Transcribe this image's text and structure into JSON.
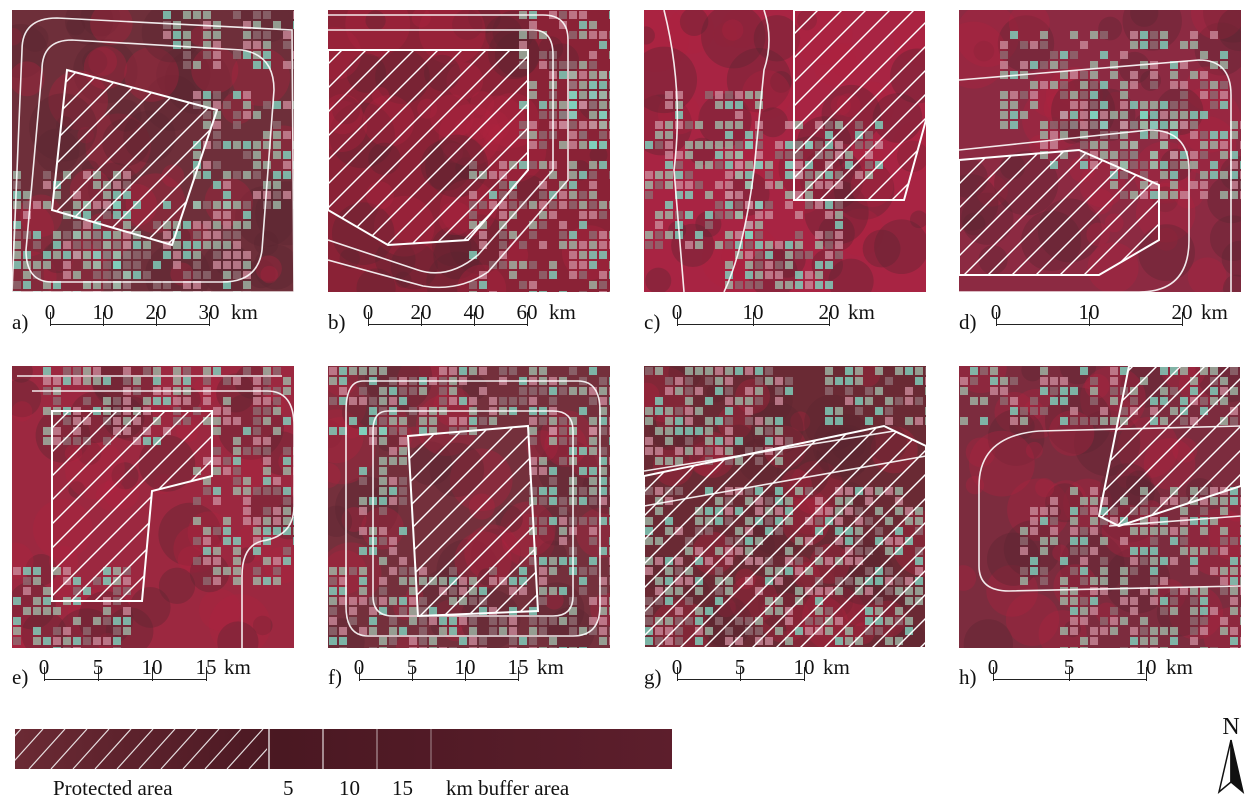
{
  "panels": [
    {
      "id": "a",
      "caption": "a)",
      "ticks": [
        "0",
        "10",
        "20",
        "30"
      ],
      "unit": "km"
    },
    {
      "id": "b",
      "caption": "b)",
      "ticks": [
        "0",
        "20",
        "40",
        "60"
      ],
      "unit": "km"
    },
    {
      "id": "c",
      "caption": "c)",
      "ticks": [
        "0",
        "10",
        "20"
      ],
      "unit": "km"
    },
    {
      "id": "d",
      "caption": "d)",
      "ticks": [
        "0",
        "10",
        "20"
      ],
      "unit": "km"
    },
    {
      "id": "e",
      "caption": "e)",
      "ticks": [
        "0",
        "5",
        "10",
        "15"
      ],
      "unit": "km"
    },
    {
      "id": "f",
      "caption": "f)",
      "ticks": [
        "0",
        "5",
        "10",
        "15"
      ],
      "unit": "km"
    },
    {
      "id": "g",
      "caption": "g)",
      "ticks": [
        "0",
        "5",
        "10"
      ],
      "unit": "km"
    },
    {
      "id": "h",
      "caption": "h)",
      "ticks": [
        "0",
        "5",
        "10"
      ],
      "unit": "km"
    }
  ],
  "legend": {
    "protected_label": "Protected area",
    "buffer_values": [
      "5",
      "10",
      "15"
    ],
    "buffer_label": "km buffer area"
  },
  "north_arrow": {
    "label": "N"
  },
  "colors": {
    "vegetation": "#b0213f",
    "cleared_land": "#9fb9a8",
    "boundary": "#ffffff",
    "legend_bar": "#5a1e2a"
  }
}
